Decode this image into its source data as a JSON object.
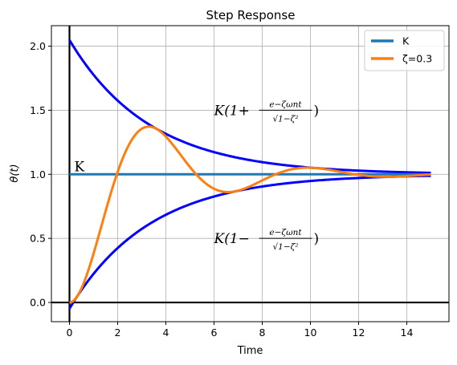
{
  "chart_data": {
    "type": "line",
    "title": "Step Response",
    "xlabel": "Time",
    "ylabel": "θ(t)",
    "xlim": [
      -0.75,
      15.75
    ],
    "ylim": [
      -0.15,
      2.16
    ],
    "xticks": [
      0,
      2,
      4,
      6,
      8,
      10,
      12,
      14
    ],
    "yticks": [
      0.0,
      0.5,
      1.0,
      1.5,
      2.0
    ],
    "xtick_labels": [
      "0",
      "2",
      "4",
      "6",
      "8",
      "10",
      "12",
      "14"
    ],
    "ytick_labels": [
      "0.0",
      "0.5",
      "1.0",
      "1.5",
      "2.0"
    ],
    "grid": true,
    "legend_position": "top-right",
    "K": 1.0,
    "zeta": 0.3,
    "omega_n": 1.0,
    "t_end": 15,
    "series": [
      {
        "name": "K",
        "kind": "constant",
        "color": "#1f77b4",
        "in_legend": true
      },
      {
        "name": "ζ=0.3",
        "kind": "step_response",
        "color": "#ff7f0e",
        "in_legend": true
      },
      {
        "name": "",
        "kind": "upper_envelope",
        "color": "#0000ff",
        "in_legend": false
      },
      {
        "name": "",
        "kind": "lower_envelope",
        "color": "#0000ff",
        "in_legend": false
      }
    ],
    "legend": [
      {
        "label": "K",
        "color": "#1f77b4"
      },
      {
        "label": "ζ=0.3",
        "color": "#ff7f0e"
      }
    ],
    "annotations": {
      "k_label": {
        "text": "K",
        "x": 0.2,
        "y": 1.01
      },
      "upper": {
        "prefix": "K(1+",
        "x": 6.0,
        "y": 1.5
      },
      "lower": {
        "prefix": "K(1−",
        "x": 6.0,
        "y": 0.5
      },
      "frac_num": "e−ζωnt",
      "frac_den": "√1−ζ²"
    }
  }
}
